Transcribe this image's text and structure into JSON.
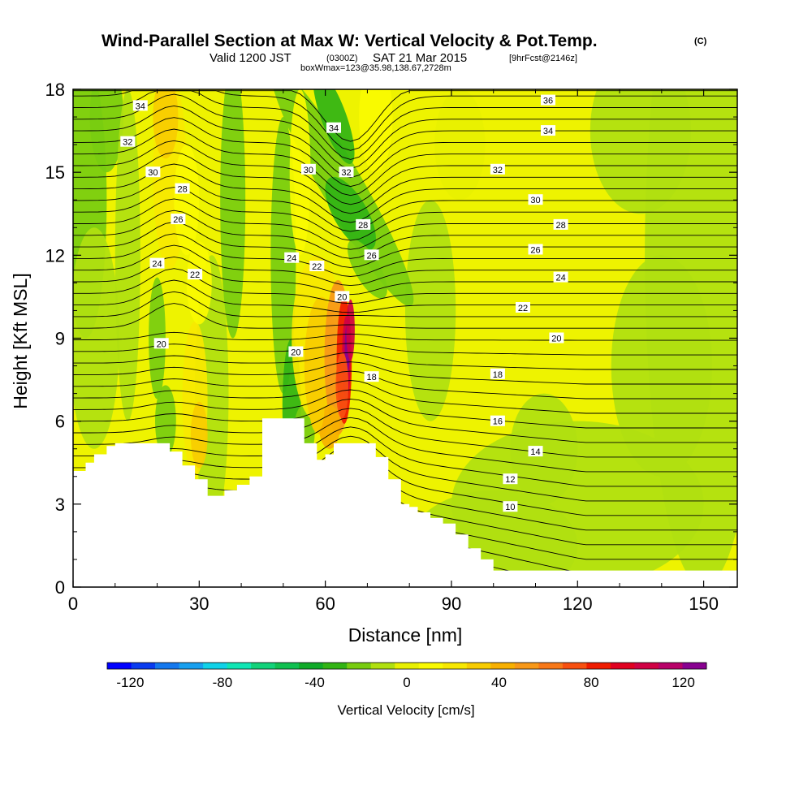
{
  "figure": {
    "title": "Wind-Parallel Section at Max W: Vertical Velocity & Pot.Temp.",
    "title_mark": "(C)",
    "subtitle_a": "Valid 1200 JST",
    "subtitle_b": "(0300Z)",
    "subtitle_c": "SAT 21 Mar 2015",
    "subtitle_d": "[9hrFcst@2146z]",
    "subtitle_line2": "boxWmax=123@35.98,138.67,2728m"
  },
  "chart_data": {
    "type": "heatmap",
    "xlabel": "Distance [nm]",
    "ylabel": "Height [Kft MSL]",
    "xlim": [
      0,
      158
    ],
    "ylim": [
      0,
      18
    ],
    "xticks": [
      "0",
      "30",
      "60",
      "90",
      "120",
      "150"
    ],
    "yticks": [
      "0",
      "3",
      "6",
      "9",
      "12",
      "15",
      "18"
    ],
    "colorbar": {
      "label": "Vertical Velocity [cm/s]",
      "range": [
        -130,
        130
      ],
      "step": 10,
      "tick_labels": [
        "-120",
        "-80",
        "-40",
        "0",
        "40",
        "80",
        "120"
      ],
      "colors": [
        "#0000ff",
        "#0a3cf0",
        "#1478ee",
        "#17a0f0",
        "#10d2e8",
        "#10e6b4",
        "#12d27a",
        "#10c050",
        "#10aa28",
        "#32b414",
        "#78cc10",
        "#b0e010",
        "#e8f000",
        "#fafa00",
        "#f8e800",
        "#f8cc00",
        "#f8b000",
        "#f89818",
        "#f87818",
        "#f85010",
        "#f01c00",
        "#e00020",
        "#d00044",
        "#b80068",
        "#880090"
      ]
    },
    "ridge_profile_y_kft": {
      "x": [
        0,
        3,
        5,
        8,
        10,
        20,
        23,
        26,
        29,
        32,
        36,
        39,
        42,
        45,
        52,
        55,
        58,
        60,
        62,
        70,
        72,
        75,
        78,
        80,
        82,
        85,
        88,
        91,
        94,
        97,
        100,
        158
      ],
      "y": [
        4.2,
        4.5,
        4.8,
        5.1,
        5.2,
        5.2,
        4.9,
        4.4,
        3.9,
        3.3,
        3.5,
        3.7,
        4.0,
        6.1,
        6.1,
        5.2,
        4.6,
        4.8,
        5.2,
        5.2,
        4.7,
        3.9,
        3.0,
        2.9,
        2.7,
        2.5,
        2.3,
        1.9,
        1.4,
        1.0,
        0.6,
        0.3
      ]
    },
    "vertical_velocity_features": [
      {
        "label": "updraft core",
        "x": 65,
        "y": 8.2,
        "w_max": 123
      },
      {
        "label": "updraft plume",
        "x": 60,
        "y": 7.5,
        "w_max": 55
      },
      {
        "label": "downdraft band",
        "x": 64,
        "y": 14.5,
        "w_max": -35
      },
      {
        "label": "downdraft left",
        "x": 3,
        "y": 15,
        "w_max": -25
      },
      {
        "label": "updraft upper left",
        "x": 23,
        "y": 15,
        "w_max": 35
      },
      {
        "label": "updraft low left",
        "x": 29,
        "y": 6.8,
        "w_max": 30
      },
      {
        "label": "updraft top middle",
        "x": 72,
        "y": 17,
        "w_max": 25
      }
    ],
    "pot_temp_contours": {
      "label_values": [
        10,
        12,
        14,
        16,
        18,
        20,
        22,
        24,
        26,
        28,
        30,
        32,
        34,
        36
      ],
      "labels": [
        {
          "text": "34",
          "x": 16,
          "y": 17.4
        },
        {
          "text": "32",
          "x": 13,
          "y": 16.1
        },
        {
          "text": "30",
          "x": 19,
          "y": 15.0
        },
        {
          "text": "28",
          "x": 26,
          "y": 14.4
        },
        {
          "text": "26",
          "x": 25,
          "y": 13.3
        },
        {
          "text": "24",
          "x": 20,
          "y": 11.7
        },
        {
          "text": "22",
          "x": 29,
          "y": 11.3
        },
        {
          "text": "20",
          "x": 21,
          "y": 8.8
        },
        {
          "text": "24",
          "x": 52,
          "y": 11.9
        },
        {
          "text": "22",
          "x": 58,
          "y": 11.6
        },
        {
          "text": "20",
          "x": 53,
          "y": 8.5
        },
        {
          "text": "20",
          "x": 64,
          "y": 10.5
        },
        {
          "text": "18",
          "x": 71,
          "y": 7.6
        },
        {
          "text": "30",
          "x": 56,
          "y": 15.1
        },
        {
          "text": "34",
          "x": 62,
          "y": 16.6
        },
        {
          "text": "32",
          "x": 65,
          "y": 15.0
        },
        {
          "text": "28",
          "x": 69,
          "y": 13.1
        },
        {
          "text": "26",
          "x": 71,
          "y": 12.0
        },
        {
          "text": "36",
          "x": 113,
          "y": 17.6
        },
        {
          "text": "34",
          "x": 113,
          "y": 16.5
        },
        {
          "text": "32",
          "x": 101,
          "y": 15.1
        },
        {
          "text": "30",
          "x": 110,
          "y": 14.0
        },
        {
          "text": "28",
          "x": 116,
          "y": 13.1
        },
        {
          "text": "26",
          "x": 110,
          "y": 12.2
        },
        {
          "text": "24",
          "x": 116,
          "y": 11.2
        },
        {
          "text": "22",
          "x": 107,
          "y": 10.1
        },
        {
          "text": "20",
          "x": 115,
          "y": 9.0
        },
        {
          "text": "18",
          "x": 101,
          "y": 7.7
        },
        {
          "text": "16",
          "x": 101,
          "y": 6.0
        },
        {
          "text": "14",
          "x": 110,
          "y": 4.9
        },
        {
          "text": "12",
          "x": 104,
          "y": 3.9
        },
        {
          "text": "10",
          "x": 104,
          "y": 2.9
        }
      ]
    }
  }
}
